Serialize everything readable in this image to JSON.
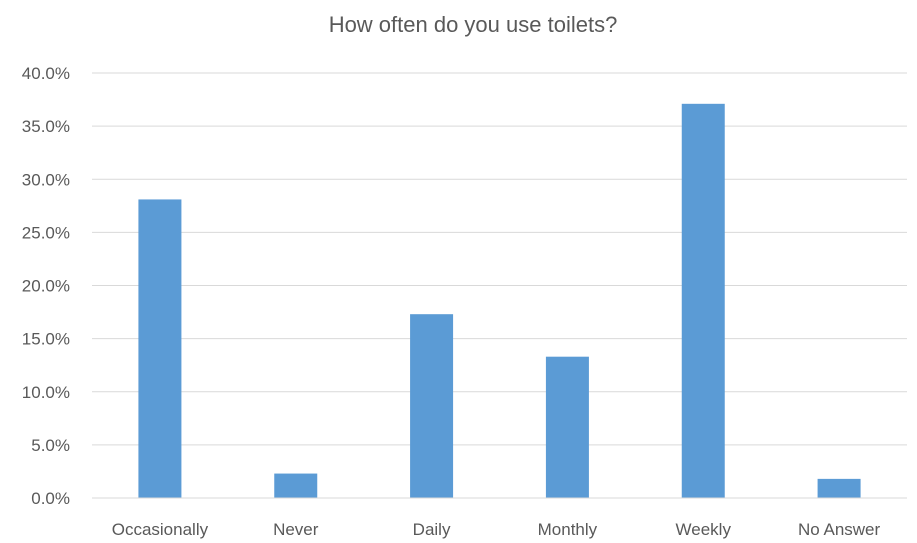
{
  "chart_data": {
    "type": "bar",
    "title": "How often do you use toilets?",
    "xlabel": "",
    "ylabel": "",
    "categories": [
      "Occasionally",
      "Never",
      "Daily",
      "Monthly",
      "Weekly",
      "No Answer"
    ],
    "values": [
      28.1,
      2.3,
      17.3,
      13.3,
      37.1,
      1.8
    ],
    "value_format": "percent",
    "ylim": [
      0,
      40
    ],
    "yticks": [
      "0.0%",
      "5.0%",
      "10.0%",
      "15.0%",
      "20.0%",
      "25.0%",
      "30.0%",
      "35.0%",
      "40.0%"
    ],
    "grid": true,
    "legend": "none",
    "bar_color": "#5b9bd5"
  }
}
